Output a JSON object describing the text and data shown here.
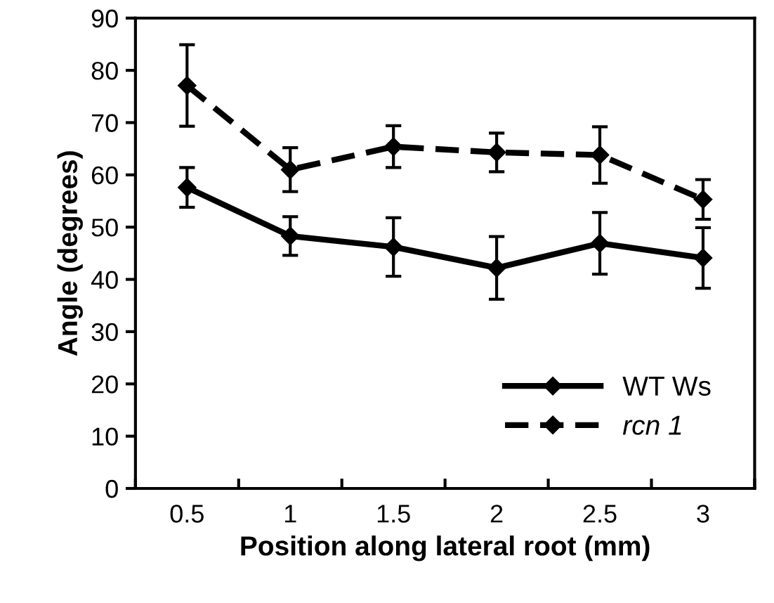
{
  "chart_data": {
    "type": "line",
    "xlabel": "Position along lateral root (mm)",
    "ylabel": "Angle (degrees)",
    "categories": [
      "0.5",
      "1",
      "1.5",
      "2",
      "2.5",
      "3"
    ],
    "series": [
      {
        "name": "WT Ws",
        "color": "#000000",
        "line_style": "solid",
        "values": [
          57.6,
          48.3,
          46.2,
          42.2,
          46.9,
          44.1
        ],
        "errors": [
          3.8,
          3.7,
          5.6,
          6.0,
          5.9,
          5.8
        ]
      },
      {
        "name": "rcn 1",
        "color": "#000000",
        "line_style": "dashed",
        "values": [
          77.1,
          61.0,
          65.4,
          64.3,
          63.8,
          55.3
        ],
        "errors": [
          7.8,
          4.2,
          4.0,
          3.7,
          5.4,
          3.8
        ]
      }
    ],
    "ylim": [
      0,
      90
    ],
    "yticks": [
      0,
      10,
      20,
      30,
      40,
      50,
      60,
      70,
      80,
      90
    ],
    "marker": "diamond",
    "grid": false,
    "legend": "bottom right"
  }
}
